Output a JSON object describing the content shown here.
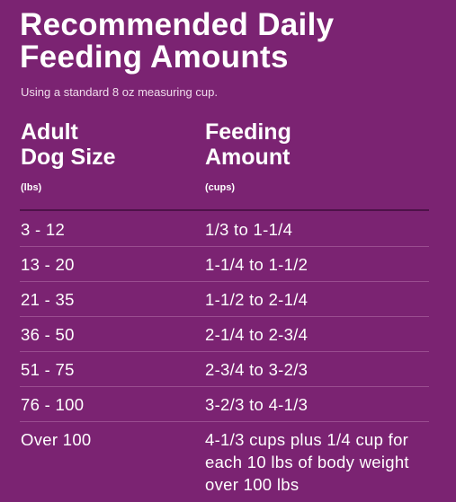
{
  "header": {
    "title_lines": [
      "Recommended Daily",
      "Feeding Amounts"
    ],
    "subtitle": "Using a standard 8 oz measuring cup."
  },
  "table": {
    "columns": [
      {
        "label_lines": [
          "Adult",
          "Dog Size"
        ],
        "unit": "(lbs)"
      },
      {
        "label_lines": [
          "Feeding",
          "Amount"
        ],
        "unit": "(cups)"
      }
    ],
    "rows": [
      [
        "3 - 12",
        "1/3 to 1-1/4"
      ],
      [
        "13 - 20",
        "1-1/4 to 1-1/2"
      ],
      [
        "21 - 35",
        "1-1/2 to 2-1/4"
      ],
      [
        "36 - 50",
        "2-1/4 to 2-3/4"
      ],
      [
        "51 - 75",
        "2-3/4 to 3-2/3"
      ],
      [
        "76 - 100",
        "3-2/3 to 4-1/3"
      ],
      [
        "Over 100",
        "4-1/3 cups plus 1/4 cup for each 10 lbs of body weight over 100 lbs"
      ]
    ]
  }
}
